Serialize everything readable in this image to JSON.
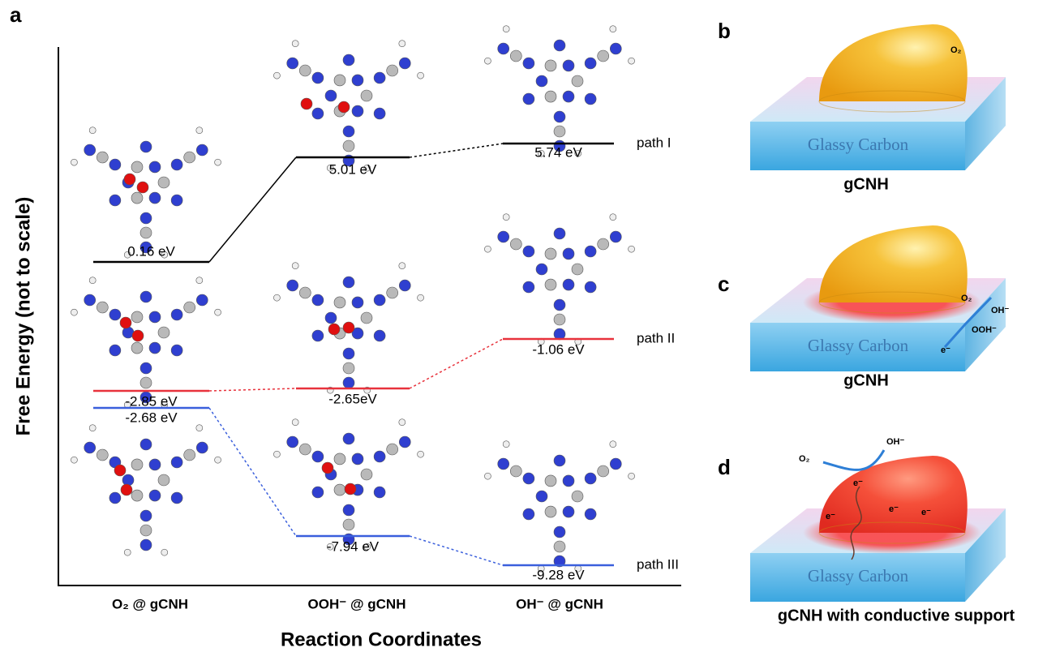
{
  "panel_a": {
    "label": "a",
    "y_axis_title": "Free Energy (not to scale)",
    "x_axis_title": "Reaction Coordinates",
    "states": [
      "O₂ @ gCNH",
      "OOH⁻ @ gCNH",
      "OH⁻ @ gCNH"
    ],
    "paths": [
      {
        "name": "path I",
        "color": "#000000",
        "levels": [
          "0.16 eV",
          "5.01 eV",
          "5.74 eV"
        ]
      },
      {
        "name": "path II",
        "color": "#e8323c",
        "levels": [
          "-2.85 eV",
          "-2.65eV",
          "-1.06 eV"
        ]
      },
      {
        "name": "path III",
        "color": "#3a5fdc",
        "levels": [
          "-2.68 eV",
          "-7.94 eV",
          "-9.28 eV"
        ]
      }
    ]
  },
  "panel_b": {
    "label": "b",
    "caption": "gCNH",
    "substrate": "Glassy Carbon",
    "annotations": [
      "O₂"
    ]
  },
  "panel_c": {
    "label": "c",
    "caption": "gCNH",
    "substrate": "Glassy Carbon",
    "annotations": [
      "O₂",
      "OH⁻",
      "OOH⁻",
      "e⁻"
    ]
  },
  "panel_d": {
    "label": "d",
    "caption": "gCNH with conductive support",
    "substrate": "Glassy Carbon",
    "annotations": [
      "O₂",
      "OH⁻",
      "e⁻",
      "e⁻",
      "e⁻",
      "e⁻"
    ]
  }
}
